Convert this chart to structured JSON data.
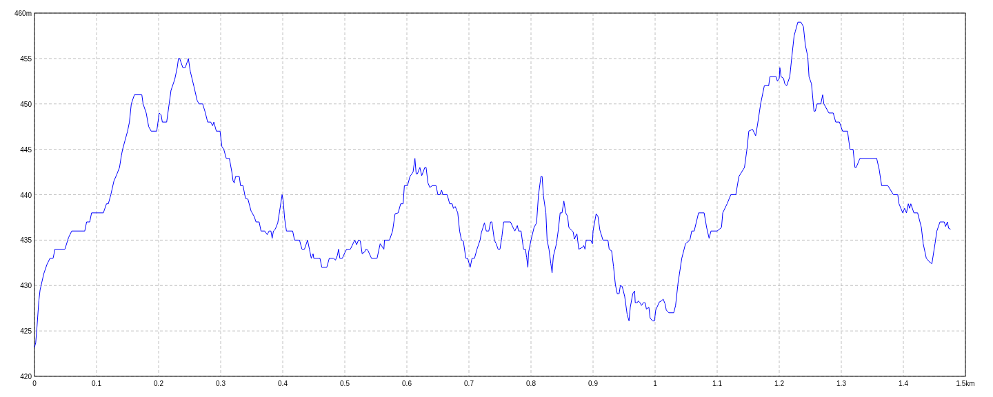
{
  "chart_data": {
    "type": "line",
    "grid": true,
    "xlim": [
      0,
      1.5
    ],
    "ylim": [
      420,
      460
    ],
    "xticks": [
      0,
      0.1,
      0.2,
      0.3,
      0.4,
      0.5,
      0.6,
      0.7,
      0.8,
      0.9,
      1,
      1.1,
      1.2,
      1.3,
      1.4,
      {
        "value": 1.5,
        "label": "1.5km"
      }
    ],
    "yticks": [
      420,
      425,
      430,
      435,
      440,
      445,
      450,
      455,
      {
        "value": 460,
        "label": "460m"
      }
    ],
    "x": [
      0,
      0.002,
      0.004,
      0.007,
      0.009,
      0.015,
      0.02,
      0.025,
      0.03,
      0.033,
      0.049,
      0.055,
      0.06,
      0.081,
      0.084,
      0.089,
      0.092,
      0.111,
      0.116,
      0.119,
      0.123,
      0.128,
      0.133,
      0.137,
      0.14,
      0.142,
      0.146,
      0.15,
      0.153,
      0.156,
      0.161,
      0.173,
      0.175,
      0.18,
      0.184,
      0.188,
      0.197,
      0.201,
      0.204,
      0.206,
      0.213,
      0.217,
      0.22,
      0.226,
      0.23,
      0.232,
      0.234,
      0.239,
      0.243,
      0.248,
      0.251,
      0.257,
      0.262,
      0.265,
      0.271,
      0.275,
      0.279,
      0.284,
      0.287,
      0.289,
      0.293,
      0.299,
      0.302,
      0.305,
      0.309,
      0.314,
      0.318,
      0.32,
      0.322,
      0.324,
      0.33,
      0.332,
      0.336,
      0.34,
      0.344,
      0.349,
      0.354,
      0.357,
      0.362,
      0.365,
      0.371,
      0.375,
      0.378,
      0.381,
      0.383,
      0.385,
      0.388,
      0.392,
      0.395,
      0.399,
      0.401,
      0.403,
      0.406,
      0.416,
      0.419,
      0.427,
      0.431,
      0.435,
      0.44,
      0.443,
      0.446,
      0.449,
      0.45,
      0.46,
      0.463,
      0.471,
      0.475,
      0.482,
      0.485,
      0.488,
      0.49,
      0.492,
      0.496,
      0.5,
      0.503,
      0.509,
      0.516,
      0.519,
      0.522,
      0.525,
      0.528,
      0.532,
      0.534,
      0.537,
      0.543,
      0.552,
      0.557,
      0.563,
      0.564,
      0.572,
      0.577,
      0.581,
      0.586,
      0.59,
      0.594,
      0.596,
      0.601,
      0.605,
      0.61,
      0.613,
      0.615,
      0.617,
      0.621,
      0.624,
      0.629,
      0.631,
      0.634,
      0.637,
      0.641,
      0.647,
      0.65,
      0.653,
      0.656,
      0.658,
      0.665,
      0.669,
      0.673,
      0.675,
      0.678,
      0.682,
      0.685,
      0.688,
      0.691,
      0.695,
      0.698,
      0.702,
      0.705,
      0.709,
      0.713,
      0.718,
      0.72,
      0.725,
      0.728,
      0.732,
      0.735,
      0.737,
      0.741,
      0.744,
      0.747,
      0.75,
      0.753,
      0.756,
      0.767,
      0.771,
      0.774,
      0.778,
      0.78,
      0.784,
      0.788,
      0.791,
      0.793,
      0.795,
      0.796,
      0.8,
      0.805,
      0.809,
      0.812,
      0.816,
      0.818,
      0.82,
      0.824,
      0.826,
      0.829,
      0.832,
      0.834,
      0.836,
      0.841,
      0.844,
      0.847,
      0.85,
      0.853,
      0.856,
      0.859,
      0.861,
      0.865,
      0.868,
      0.87,
      0.873,
      0.874,
      0.877,
      0.883,
      0.885,
      0.887,
      0.889,
      0.896,
      0.899,
      0.9,
      0.905,
      0.908,
      0.911,
      0.916,
      0.924,
      0.926,
      0.93,
      0.933,
      0.936,
      0.939,
      0.942,
      0.944,
      0.947,
      0.951,
      0.955,
      0.958,
      0.96,
      0.964,
      0.967,
      0.968,
      0.971,
      0.973,
      0.976,
      0.978,
      0.981,
      0.984,
      0.986,
      0.99,
      0.992,
      0.996,
      0.999,
      1.001,
      1.007,
      1.01,
      1.013,
      1.016,
      1.018,
      1.022,
      1.03,
      1.033,
      1.037,
      1.043,
      1.049,
      1.056,
      1.059,
      1.063,
      1.07,
      1.079,
      1.083,
      1.087,
      1.09,
      1.1,
      1.107,
      1.109,
      1.116,
      1.122,
      1.13,
      1.135,
      1.144,
      1.148,
      1.151,
      1.157,
      1.162,
      1.165,
      1.17,
      1.176,
      1.183,
      1.185,
      1.195,
      1.197,
      1.2,
      1.201,
      1.203,
      1.207,
      1.209,
      1.212,
      1.217,
      1.22,
      1.224,
      1.226,
      1.23,
      1.235,
      1.239,
      1.242,
      1.246,
      1.248,
      1.252,
      1.256,
      1.258,
      1.261,
      1.267,
      1.27,
      1.272,
      1.28,
      1.287,
      1.291,
      1.297,
      1.302,
      1.31,
      1.314,
      1.319,
      1.322,
      1.324,
      1.33,
      1.357,
      1.361,
      1.365,
      1.375,
      1.384,
      1.391,
      1.393,
      1.399,
      1.402,
      1.405,
      1.408,
      1.41,
      1.412,
      1.417,
      1.423,
      1.429,
      1.432,
      1.437,
      1.442,
      1.446,
      1.451,
      1.454,
      1.459,
      1.466,
      1.468,
      1.471,
      1.473,
      1.476
    ],
    "series": [
      {
        "color": "#0000ff",
        "values": [
          423.2,
          423.7,
          425.4,
          428.3,
          429.5,
          431.3,
          432.3,
          433,
          433,
          434,
          434,
          435.3,
          436,
          436,
          437,
          437,
          438,
          438,
          439,
          439,
          440,
          441.5,
          442.3,
          443,
          444.3,
          445,
          446,
          447,
          448,
          450,
          451,
          451,
          450,
          449,
          447.5,
          447,
          447,
          449,
          448.8,
          448,
          448,
          450,
          451.5,
          452.7,
          454,
          455,
          455,
          454,
          454,
          455,
          453.6,
          451.9,
          450.4,
          450,
          450,
          449.1,
          448,
          448,
          447.6,
          448,
          447,
          447,
          445.3,
          445,
          444,
          444,
          442.5,
          441.5,
          441.3,
          442,
          442,
          441,
          441,
          439.6,
          439.5,
          438.2,
          437.6,
          437,
          437,
          436,
          436,
          435.6,
          436,
          436,
          435.2,
          436,
          436.2,
          436.9,
          438.2,
          440,
          439.2,
          437.4,
          436,
          436,
          435,
          435,
          434,
          434,
          435,
          434,
          433,
          433.5,
          433,
          433,
          432,
          432,
          433,
          433,
          432.8,
          433.3,
          434,
          433,
          433,
          433.6,
          434,
          434,
          435,
          434.5,
          435,
          434.9,
          433.5,
          433.7,
          434,
          433.9,
          433,
          433,
          434.6,
          434,
          435,
          435,
          436,
          437.9,
          438,
          439,
          439,
          441,
          441,
          442,
          442.5,
          444,
          442.3,
          442.3,
          443,
          442.1,
          443,
          443,
          441.3,
          440.8,
          441,
          441,
          440,
          440,
          440.5,
          440,
          440,
          439,
          439,
          438.5,
          438.7,
          438,
          436,
          435,
          434.9,
          433,
          433,
          432,
          433,
          433,
          434,
          435,
          435.8,
          436.9,
          436,
          436,
          437,
          437,
          435,
          434.6,
          434,
          434,
          435.3,
          437,
          437,
          436.4,
          436,
          436.6,
          436,
          436,
          434,
          434,
          433.1,
          432,
          433.6,
          435,
          436.4,
          436.9,
          439.9,
          442,
          442,
          439.9,
          438,
          435,
          434,
          432.4,
          431.4,
          433.2,
          434.6,
          436.1,
          438,
          438,
          439.3,
          438,
          437.6,
          436.4,
          436.1,
          435.9,
          435.1,
          435.6,
          435.7,
          434,
          434.2,
          434.4,
          434,
          435,
          435,
          434.6,
          436,
          437.9,
          437.6,
          436.1,
          435,
          435,
          434,
          433.8,
          432.1,
          430.1,
          429.1,
          429.1,
          430,
          429.9,
          428.8,
          426.8,
          426.1,
          427.6,
          429.1,
          429.4,
          428.1,
          428.1,
          428.3,
          428.1,
          427.8,
          428.1,
          428.1,
          427.4,
          427.6,
          426.4,
          426.1,
          426.1,
          427.3,
          428.2,
          428.3,
          428.5,
          428,
          427.3,
          427,
          427,
          427.8,
          430.3,
          433,
          434.6,
          435,
          436,
          436,
          438,
          438,
          436.4,
          435.2,
          436,
          436,
          436.4,
          438,
          439,
          440,
          440,
          442,
          443,
          445,
          447,
          447.2,
          446.5,
          447.7,
          450,
          452,
          452,
          453,
          453,
          452.5,
          452.8,
          454,
          453,
          452.8,
          452.2,
          452,
          453,
          455,
          457.5,
          458,
          459,
          459,
          458.5,
          456.5,
          455.2,
          453,
          452.2,
          449.2,
          449.2,
          450,
          450,
          451,
          450,
          449,
          449,
          448,
          448,
          447,
          447,
          445,
          445,
          443,
          443,
          444,
          444,
          442.8,
          441,
          441,
          440,
          440,
          439,
          438,
          438.5,
          438,
          439,
          438.5,
          439,
          438,
          438,
          436.4,
          434.6,
          433,
          432.6,
          432.4,
          434.6,
          436,
          437,
          437,
          436.5,
          437,
          436.3,
          436.2
        ]
      }
    ]
  }
}
